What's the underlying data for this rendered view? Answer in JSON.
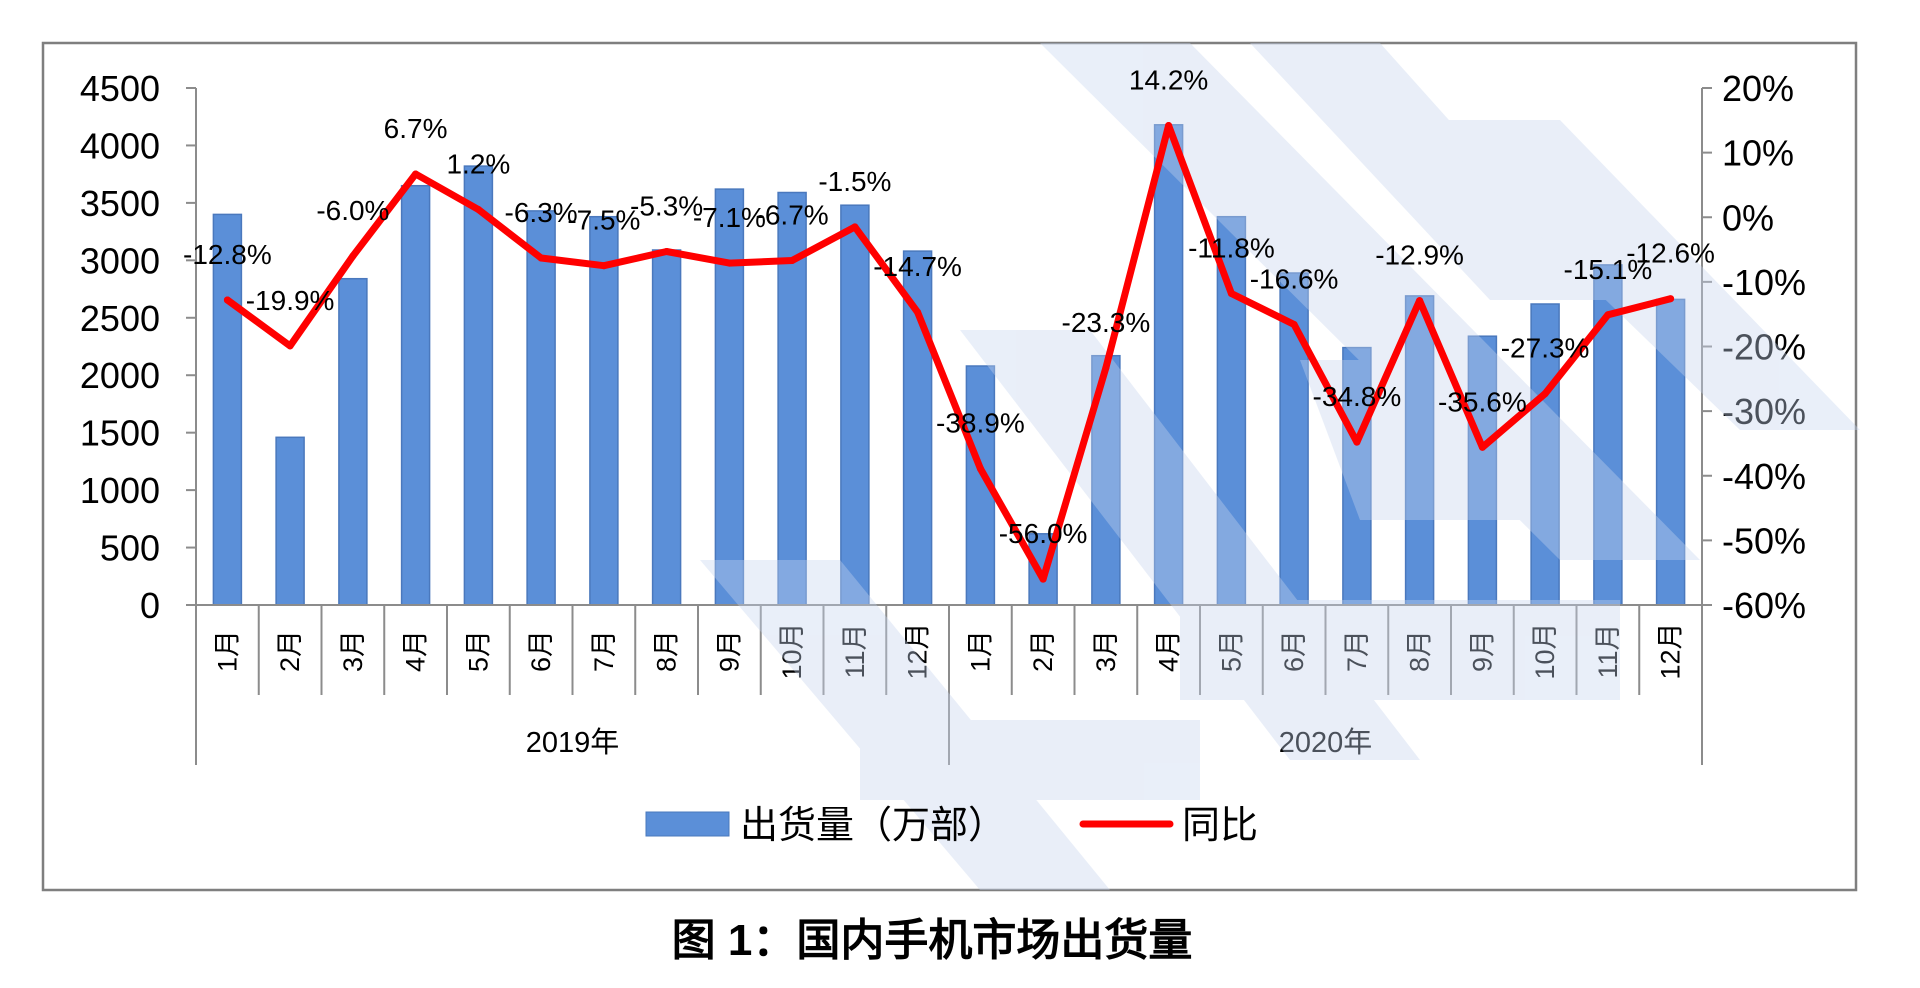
{
  "title": "图 1：国内手机市场出货量",
  "legend": {
    "bars": "出货量（万部）",
    "line": "同比"
  },
  "colors": {
    "bars": "#5b8fd8",
    "bar_edge": "#4a78bd",
    "line": "#ff0000",
    "frame": "#7f7f7f",
    "axis": "#8c8c8c",
    "watermark": "#c6d5ee"
  },
  "chart_data": {
    "type": "bar",
    "groups": [
      {
        "label": "2019年",
        "months": [
          "1月",
          "2月",
          "3月",
          "4月",
          "5月",
          "6月",
          "7月",
          "8月",
          "9月",
          "10月",
          "11月",
          "12月"
        ]
      },
      {
        "label": "2020年",
        "months": [
          "1月",
          "2月",
          "3月",
          "4月",
          "5月",
          "6月",
          "7月",
          "8月",
          "9月",
          "10月",
          "11月",
          "12月"
        ]
      }
    ],
    "series": [
      {
        "name": "出货量（万部）",
        "type": "bar",
        "axis": "left",
        "values": [
          3400,
          1460,
          2840,
          3650,
          3820,
          3430,
          3380,
          3090,
          3620,
          3590,
          3480,
          3080,
          2080,
          620,
          2170,
          4180,
          3380,
          2890,
          2240,
          2690,
          2340,
          2620,
          2960,
          2660
        ]
      },
      {
        "name": "同比",
        "type": "line",
        "axis": "right",
        "unit": "%",
        "values": [
          -12.8,
          -19.9,
          -6.0,
          6.7,
          1.2,
          -6.3,
          -7.5,
          -5.3,
          -7.1,
          -6.7,
          -1.5,
          -14.7,
          -38.9,
          -56.0,
          -23.3,
          14.2,
          -11.8,
          -16.6,
          -34.8,
          -12.9,
          -35.6,
          -27.3,
          -15.1,
          -12.6
        ]
      }
    ],
    "y_left": {
      "range": [
        0,
        4500
      ],
      "ticks": [
        0,
        500,
        1000,
        1500,
        2000,
        2500,
        3000,
        3500,
        4000,
        4500
      ]
    },
    "y_right": {
      "range": [
        -60,
        20
      ],
      "ticks": [
        "20%",
        "10%",
        "0%",
        "-10%",
        "-20%",
        "-30%",
        "-40%",
        "-50%",
        "-60%"
      ]
    },
    "legend_position": "bottom",
    "grid": false
  }
}
